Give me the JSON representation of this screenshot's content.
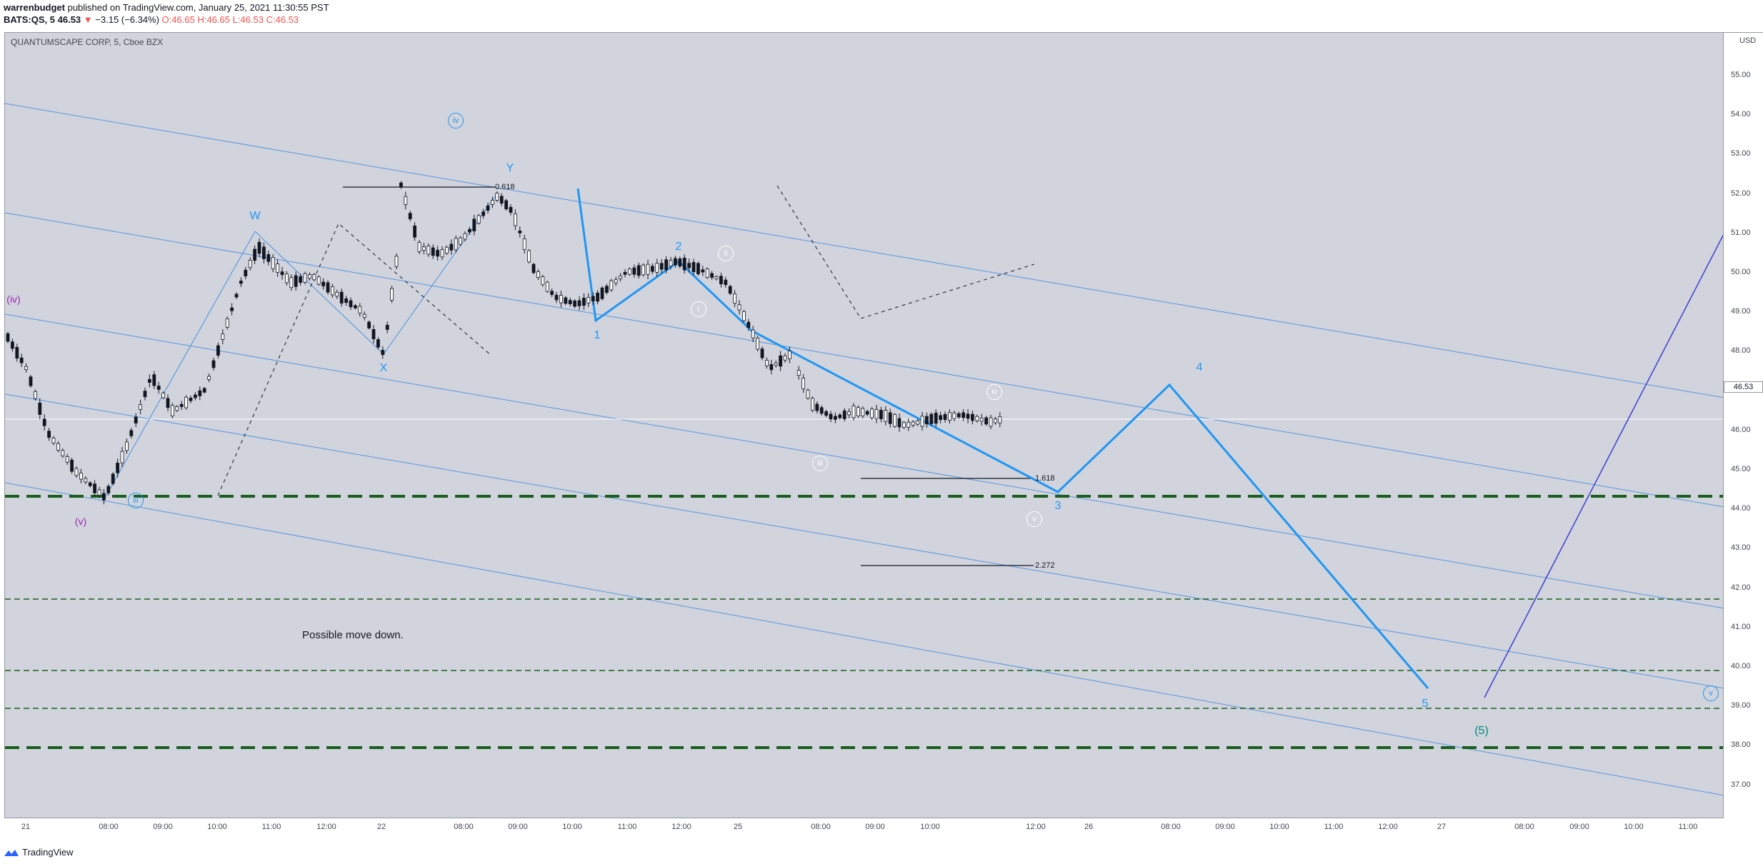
{
  "header": {
    "author": "warrenbudget",
    "published_text": "published on TradingView.com, January 25, 2021 11:30:55 PST",
    "ticker": "BATS:QS, 5",
    "last": "46.53",
    "change": "−3.15 (−6.34%)",
    "ohlc_o": "O:46.65",
    "ohlc_h": "H:46.65",
    "ohlc_l": "L:46.53",
    "ohlc_c": "C:46.53"
  },
  "chart": {
    "symbol_label": "QUANTUMSCAPE CORP, 5, Cboe BZX",
    "note": "Possible move down.",
    "y_unit": "USD",
    "current_price_label": "46.53",
    "y_ticks": [
      "55.00",
      "54.00",
      "53.00",
      "52.00",
      "51.00",
      "50.00",
      "49.00",
      "48.00",
      "47.00",
      "46.00",
      "45.00",
      "44.00",
      "43.00",
      "42.00",
      "41.00",
      "40.00",
      "39.00",
      "38.00",
      "37.00"
    ],
    "x_ticks": [
      "21",
      "08:00",
      "09:00",
      "10:00",
      "11:00",
      "12:00",
      "22",
      "08:00",
      "09:00",
      "10:00",
      "11:00",
      "12:00",
      "25",
      "08:00",
      "09:00",
      "10:00",
      "12:00",
      "26",
      "08:00",
      "09:00",
      "10:00",
      "11:00",
      "12:00",
      "27",
      "08:00",
      "09:00",
      "10:00",
      "11:00"
    ],
    "wave_labels": {
      "W": "W",
      "X": "X",
      "Y": "Y",
      "w1": "1",
      "w2": "2",
      "w3": "3",
      "w4": "4",
      "w5": "5",
      "w5big": "(5)",
      "iv_purple": "(iv)",
      "v_purple": "(v)",
      "iii_blue": "iii",
      "iv_blue": "iv",
      "v_blue": "v",
      "i_white": "i",
      "ii_white": "ii",
      "iii_white": "iii",
      "iv_white": "iv",
      "v_white": "v"
    },
    "fib_labels": {
      "f0618": "0.618",
      "f1618": "1.618",
      "f2272": "2.272"
    },
    "colors": {
      "background": "#d1d4dc",
      "wave_blue": "#2196f3",
      "channel_blue": "#4a8fe0",
      "support_green": "#1b5e20",
      "purple": "#7b1fa2",
      "projection": "#3f3fd0"
    }
  },
  "footer": {
    "brand": "TradingView"
  }
}
